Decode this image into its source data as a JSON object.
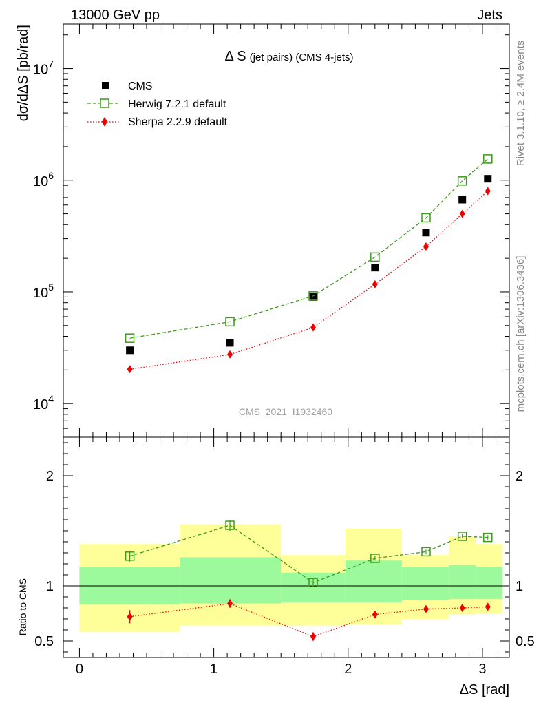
{
  "header": {
    "left": "13000 GeV pp",
    "right": "Jets"
  },
  "side": {
    "rivet": "Rivet 3.1.10, ≥ 2.4M events",
    "mcplots": "mcplots.cern.ch [arXiv:1306.3436]"
  },
  "chart_data": [
    {
      "type": "scatter",
      "title": "Δ S",
      "title_suffix": "(jet pairs) (CMS 4-jets)",
      "watermark": "CMS_2021_I1932460",
      "ylabel": "dσ/dΔS [pb/rad]",
      "yscale": "log",
      "ylim": [
        5000,
        25000000
      ],
      "xlim": [
        -0.12,
        3.2
      ],
      "ytick_labels": [
        {
          "base": "10",
          "exp": "4",
          "value": 10000
        },
        {
          "base": "10",
          "exp": "5",
          "value": 100000
        },
        {
          "base": "10",
          "exp": "6",
          "value": 1000000
        },
        {
          "base": "10",
          "exp": "7",
          "value": 10000000
        }
      ],
      "legend_position": "top-left",
      "series": [
        {
          "name": "CMS",
          "style": "square-filled",
          "color": "#000000",
          "x": [
            0.375,
            1.12,
            1.74,
            2.2,
            2.58,
            2.85,
            3.04
          ],
          "y": [
            30000,
            35000,
            90000,
            165000,
            340000,
            670000,
            1030000
          ]
        },
        {
          "name": "Herwig 7.2.1 default",
          "style": "square-open-dashed",
          "color": "#3d9a1c",
          "x": [
            0.375,
            1.12,
            1.74,
            2.2,
            2.58,
            2.85,
            3.04
          ],
          "y": [
            38500,
            54000,
            92000,
            205000,
            460000,
            985000,
            1550000
          ]
        },
        {
          "name": "Sherpa 2.2.9 default",
          "style": "diamond-filled-dotted",
          "color": "#ee0000",
          "x": [
            0.375,
            1.12,
            1.74,
            2.2,
            2.58,
            2.85,
            3.04
          ],
          "y": [
            20300,
            27500,
            48000,
            117000,
            255000,
            500000,
            800000
          ]
        }
      ]
    },
    {
      "type": "scatter",
      "ylabel": "Ratio to CMS",
      "xlabel": "ΔS [rad]",
      "ylim": [
        0.35,
        2.35
      ],
      "xlim": [
        -0.12,
        3.2
      ],
      "xtick_labels": [
        "0",
        "1",
        "2",
        "3"
      ],
      "ytick_labels": [
        "0.5",
        "1",
        "2"
      ],
      "ytick_values": [
        0.5,
        1,
        2
      ],
      "reference_line": 1.0,
      "band_colors": {
        "inner": "#9cf99c",
        "outer": "#ffff99"
      },
      "bins": [
        {
          "x_low": 0.0,
          "x_high": 0.75,
          "inner": [
            0.83,
            1.17
          ],
          "outer": [
            0.58,
            1.38
          ]
        },
        {
          "x_low": 0.75,
          "x_high": 1.5,
          "inner": [
            0.84,
            1.26
          ],
          "outer": [
            0.64,
            1.56
          ]
        },
        {
          "x_low": 1.5,
          "x_high": 1.98,
          "inner": [
            0.85,
            1.12
          ],
          "outer": [
            0.64,
            1.28
          ]
        },
        {
          "x_low": 1.98,
          "x_high": 2.4,
          "inner": [
            0.85,
            1.23
          ],
          "outer": [
            0.65,
            1.52
          ]
        },
        {
          "x_low": 2.4,
          "x_high": 2.75,
          "inner": [
            0.87,
            1.17
          ],
          "outer": [
            0.7,
            1.28
          ]
        },
        {
          "x_low": 2.75,
          "x_high": 2.95,
          "inner": [
            0.88,
            1.19
          ],
          "outer": [
            0.74,
            1.45
          ]
        },
        {
          "x_low": 2.95,
          "x_high": 3.15,
          "inner": [
            0.88,
            1.17
          ],
          "outer": [
            0.75,
            1.38
          ]
        }
      ],
      "series": [
        {
          "name": "Herwig 7.2.1 default",
          "color": "#3d9a1c",
          "x": [
            0.375,
            1.12,
            1.74,
            2.2,
            2.58,
            2.85,
            3.04
          ],
          "y": [
            1.27,
            1.55,
            1.03,
            1.25,
            1.31,
            1.45,
            1.44
          ],
          "err": [
            0.05,
            0.05,
            0.04,
            0.02,
            0.02,
            0.02,
            0.02
          ]
        },
        {
          "name": "Sherpa 2.2.9 default",
          "color": "#ee0000",
          "x": [
            0.375,
            1.12,
            1.74,
            2.2,
            2.58,
            2.85,
            3.04
          ],
          "y": [
            0.72,
            0.84,
            0.54,
            0.74,
            0.79,
            0.8,
            0.81
          ],
          "err": [
            0.06,
            0.04,
            0.04,
            0.03,
            0.02,
            0.02,
            0.02
          ]
        }
      ]
    }
  ]
}
